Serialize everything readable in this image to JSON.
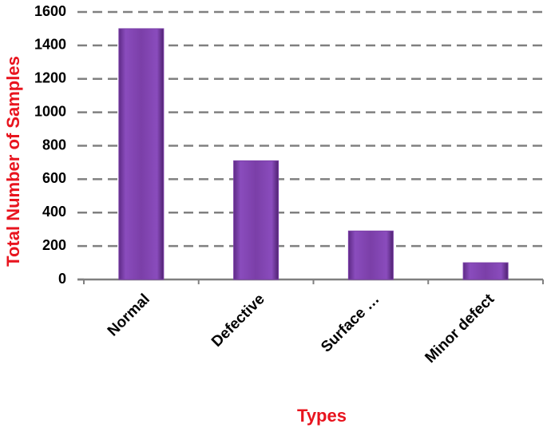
{
  "chart_data": {
    "type": "bar",
    "categories": [
      "Normal",
      "Defective",
      "Surface …",
      "Minor defect"
    ],
    "values": [
      1500,
      710,
      290,
      100
    ],
    "color": "#7b3fa8",
    "ylim": [
      0,
      1600
    ],
    "yticks": [
      0,
      200,
      400,
      600,
      800,
      1000,
      1200,
      1400,
      1600
    ],
    "grid": true,
    "x_label": "Types",
    "y_label": "Total Number of Samples"
  }
}
